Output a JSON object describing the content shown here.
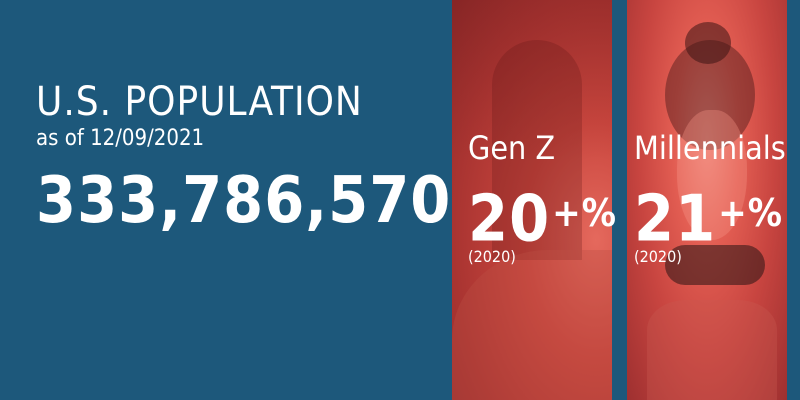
{
  "left_panel": {
    "title": "U.S. POPULATION",
    "subtitle": "as of 12/09/2021",
    "population": "333,786,570"
  },
  "stats": [
    {
      "label": "Gen Z",
      "value": "20",
      "suffix": "+%",
      "year": "(2020)"
    },
    {
      "label": "Millennials",
      "value": "21",
      "suffix": "+%",
      "year": "(2020)"
    }
  ],
  "colors": {
    "background": "#1d587b",
    "text": "#ffffff",
    "photo_tint": "#c9463e"
  }
}
